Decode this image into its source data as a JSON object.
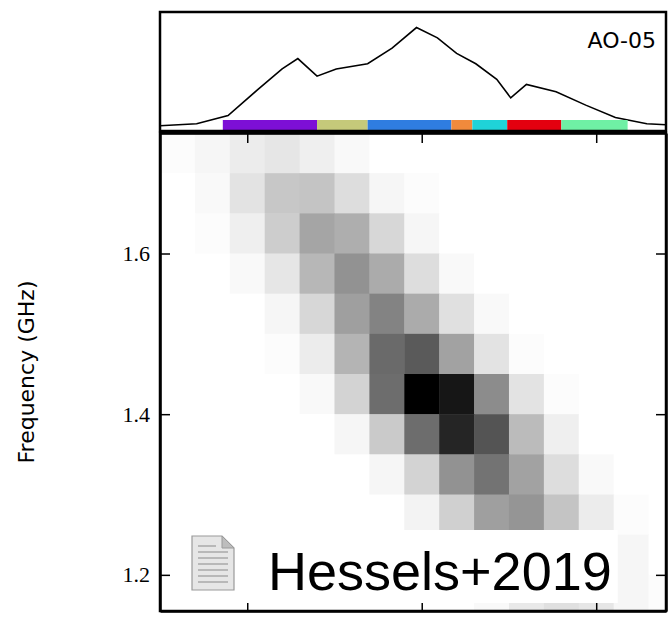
{
  "chart_data": [
    {
      "type": "line",
      "title": "AO-05",
      "color": "#000000",
      "tick_labels": false,
      "xlim": [
        0.5,
        3.4
      ],
      "ylim": [
        -0.05,
        1.1
      ],
      "x": [
        0.5,
        0.71,
        0.89,
        1.06,
        1.2,
        1.29,
        1.4,
        1.51,
        1.69,
        1.83,
        1.97,
        2.09,
        2.2,
        2.31,
        2.43,
        2.51,
        2.6,
        2.77,
        2.94,
        3.11,
        3.29,
        3.4
      ],
      "values": [
        0,
        0.02,
        0.1,
        0.35,
        0.55,
        0.65,
        0.48,
        0.55,
        0.6,
        0.75,
        0.95,
        0.85,
        0.7,
        0.6,
        0.45,
        0.27,
        0.4,
        0.33,
        0.2,
        0.08,
        0.02,
        0.01
      ],
      "components": [
        {
          "start": 0.86,
          "end": 1.4,
          "color": "#7d0fd6"
        },
        {
          "start": 1.4,
          "end": 1.69,
          "color": "#c5c97a"
        },
        {
          "start": 1.69,
          "end": 2.17,
          "color": "#2f7de1"
        },
        {
          "start": 2.17,
          "end": 2.29,
          "color": "#f08a3c"
        },
        {
          "start": 2.29,
          "end": 2.49,
          "color": "#1fd3d8"
        },
        {
          "start": 2.49,
          "end": 2.8,
          "color": "#e3000f"
        },
        {
          "start": 2.8,
          "end": 3.18,
          "color": "#6ff0a5"
        }
      ]
    },
    {
      "type": "heatmap",
      "y_label": "Frequency (GHz)",
      "annotation": "Hessels+2019",
      "color": "#000000",
      "tick_labels": "y",
      "xlim": [
        0.5,
        3.4
      ],
      "xticks": [
        1,
        2,
        3
      ],
      "ylim": [
        1.155,
        1.75
      ],
      "yticks": [
        1.2,
        1.4,
        1.6
      ],
      "x": [
        0.6,
        0.8,
        1.0,
        1.2,
        1.4,
        1.6,
        1.8,
        2.0,
        2.2,
        2.4,
        2.6,
        2.8,
        3.0,
        3.2,
        3.4
      ],
      "y": [
        1.725,
        1.675,
        1.625,
        1.575,
        1.525,
        1.475,
        1.425,
        1.375,
        1.325,
        1.275,
        1.225,
        1.175
      ],
      "z": [
        [
          0.01,
          0.03,
          0.06,
          0.08,
          0.05,
          0.02,
          0,
          0,
          0,
          0,
          0,
          0,
          0,
          0,
          0
        ],
        [
          0,
          0.02,
          0.09,
          0.18,
          0.19,
          0.11,
          0.03,
          0.01,
          0,
          0,
          0,
          0,
          0,
          0,
          0
        ],
        [
          0,
          0.01,
          0.05,
          0.16,
          0.29,
          0.26,
          0.13,
          0.03,
          0,
          0,
          0,
          0,
          0,
          0,
          0
        ],
        [
          0,
          0,
          0.02,
          0.08,
          0.23,
          0.35,
          0.27,
          0.11,
          0.02,
          0,
          0,
          0,
          0,
          0,
          0
        ],
        [
          0,
          0,
          0,
          0.03,
          0.13,
          0.31,
          0.4,
          0.27,
          0.1,
          0.02,
          0,
          0,
          0,
          0,
          0
        ],
        [
          0,
          0,
          0,
          0.01,
          0.06,
          0.24,
          0.48,
          0.53,
          0.3,
          0.09,
          0.01,
          0,
          0,
          0,
          0
        ],
        [
          0,
          0,
          0,
          0,
          0.02,
          0.14,
          0.47,
          0.82,
          0.75,
          0.37,
          0.09,
          0.01,
          0,
          0,
          0
        ],
        [
          0,
          0,
          0,
          0,
          0,
          0.03,
          0.17,
          0.47,
          0.7,
          0.55,
          0.22,
          0.05,
          0,
          0,
          0
        ],
        [
          0,
          0,
          0,
          0,
          0,
          0,
          0.03,
          0.14,
          0.35,
          0.45,
          0.3,
          0.11,
          0.02,
          0,
          0
        ],
        [
          0,
          0,
          0,
          0,
          0,
          0,
          0,
          0.04,
          0.15,
          0.31,
          0.34,
          0.19,
          0.06,
          0.01,
          0
        ],
        [
          0,
          0,
          0,
          0,
          0,
          0,
          0,
          0.01,
          0.05,
          0.17,
          0.29,
          0.26,
          0.13,
          0.03,
          0
        ],
        [
          0,
          0,
          0,
          0,
          0,
          0,
          0,
          0,
          0,
          0.02,
          0.07,
          0.1,
          0.08,
          0.03,
          0.01
        ]
      ]
    }
  ]
}
